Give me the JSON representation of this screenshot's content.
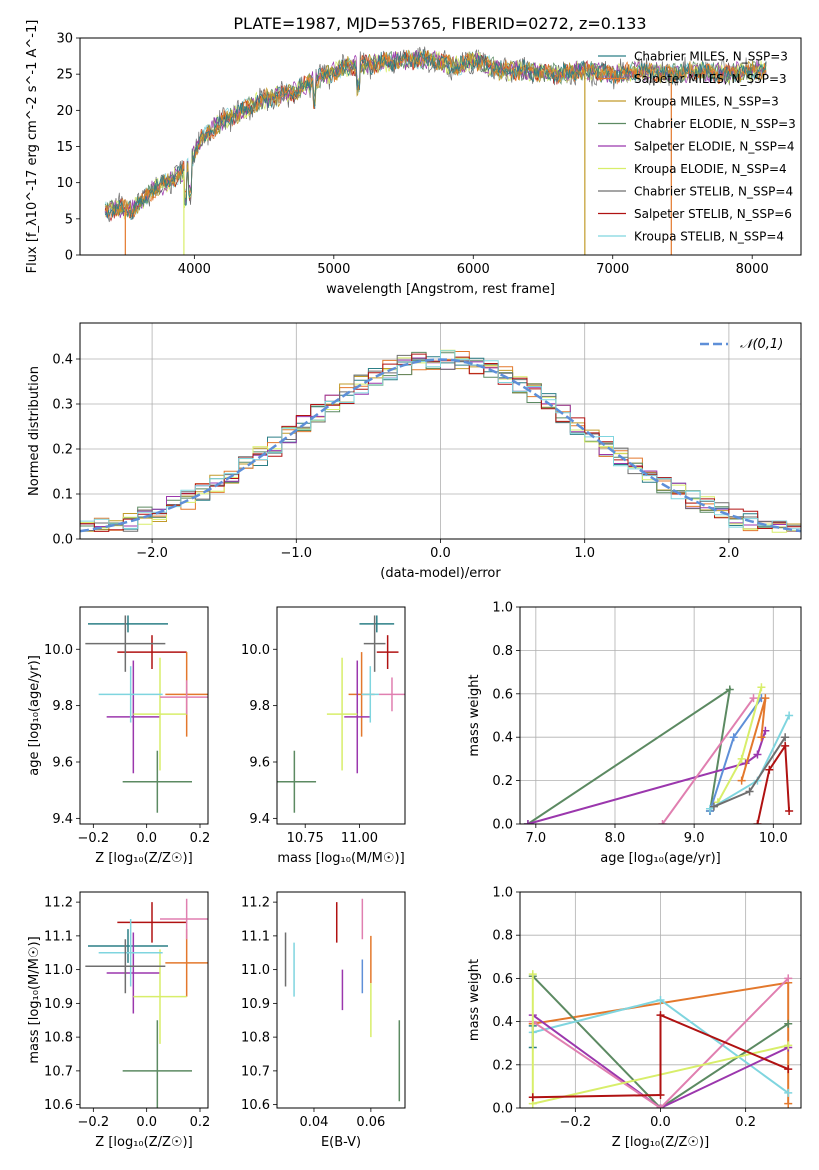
{
  "colors": {
    "chabrier_miles": "#2c7f86",
    "salpeter_miles": "#e3782c",
    "kroupa_miles": "#c29b2a",
    "chabrier_elodie": "#5c8a62",
    "salpeter_elodie": "#9b37ad",
    "kroupa_elodie": "#d8ee6a",
    "chabrier_stelib": "#6f6f6f",
    "salpeter_stelib": "#b01212",
    "kroupa_stelib": "#7fd5df",
    "pink": "#e07fb0",
    "blue": "#5e8fd8",
    "grid": "#b0b0b0"
  },
  "chart_data": [
    {
      "type": "line",
      "title": "PLATE=1987, MJD=53765, FIBERID=0272, z=0.133",
      "xlabel": "wavelength [Angstrom, rest frame]",
      "ylabel": "Flux [f_λ10^-17 erg cm^-2 s^-1 A^-1]",
      "xlim": [
        3180,
        8350
      ],
      "ylim": [
        0,
        30
      ],
      "xticks": [
        4000,
        5000,
        6000,
        7000,
        8000
      ],
      "yticks": [
        0,
        5,
        10,
        15,
        20,
        25,
        30
      ],
      "grid": false,
      "legend_position": "right",
      "series": [
        {
          "name": "Chabrier MILES, N_SSP=3",
          "color_key": "chabrier_miles"
        },
        {
          "name": "Salpeter MILES, N_SSP=3",
          "color_key": "salpeter_miles"
        },
        {
          "name": "Kroupa MILES, N_SSP=3",
          "color_key": "kroupa_miles"
        },
        {
          "name": "Chabrier ELODIE, N_SSP=3",
          "color_key": "chabrier_elodie"
        },
        {
          "name": "Salpeter ELODIE, N_SSP=4",
          "color_key": "salpeter_elodie"
        },
        {
          "name": "Kroupa ELODIE, N_SSP=4",
          "color_key": "kroupa_elodie"
        },
        {
          "name": "Chabrier STELIB, N_SSP=4",
          "color_key": "chabrier_stelib"
        },
        {
          "name": "Salpeter STELIB, N_SSP=6",
          "color_key": "salpeter_stelib"
        },
        {
          "name": "Kroupa STELIB, N_SSP=4",
          "color_key": "kroupa_stelib"
        }
      ],
      "continuum": {
        "x": [
          3360,
          3450,
          3560,
          3700,
          3850,
          3950,
          4050,
          4200,
          4350,
          4500,
          4700,
          4900,
          5100,
          5300,
          5500,
          5700,
          5900,
          6000,
          6200,
          6400,
          6600,
          6800,
          7000,
          7200,
          7400,
          7600,
          7800,
          8000,
          8100
        ],
        "y": [
          6,
          6.5,
          6.2,
          9,
          10.5,
          12,
          16,
          18.5,
          20,
          21.5,
          22.5,
          24.5,
          26,
          26.5,
          27,
          27,
          26,
          27,
          25.5,
          25.5,
          25,
          25.5,
          25,
          25.5,
          25,
          25.5,
          25,
          25.5,
          25.5
        ]
      },
      "spikes": [
        {
          "x": 3505,
          "color_key": "salpeter_miles"
        },
        {
          "x": 3925,
          "color_key": "kroupa_elodie"
        },
        {
          "x": 6800,
          "color_key": "kroupa_miles"
        },
        {
          "x": 7420,
          "color_key": "salpeter_miles"
        }
      ]
    },
    {
      "type": "step",
      "xlabel": "(data-model)/error",
      "ylabel": "Normed distribution",
      "xlim": [
        -2.5,
        2.5
      ],
      "ylim": [
        0,
        0.48
      ],
      "xticks": [
        -2,
        -1,
        0,
        1,
        2
      ],
      "yticks": [
        0.0,
        0.1,
        0.2,
        0.3,
        0.4
      ],
      "grid": true,
      "legend": [
        {
          "label": "𝒩(0,1)",
          "color_key": "blue",
          "style": "dashed"
        }
      ],
      "reference": {
        "name": "N(0,1)",
        "mu": 0,
        "sigma": 1
      }
    },
    {
      "type": "errorbar",
      "xlabel": "Z [log₁₀(Z/Z☉)]",
      "ylabel": "age  [log₁₀(age/yr)]",
      "xlim": [
        -0.25,
        0.23
      ],
      "ylim": [
        9.38,
        10.15
      ],
      "xticks": [
        -0.2,
        0.0,
        0.2
      ],
      "yticks": [
        9.4,
        9.6,
        9.8,
        10.0
      ],
      "points": [
        {
          "x": -0.07,
          "y": 10.09,
          "xerr": 0.15,
          "yerr": 0.03,
          "color_key": "chabrier_miles"
        },
        {
          "x": 0.02,
          "y": 9.99,
          "xerr": 0.13,
          "yerr": 0.06,
          "color_key": "salpeter_stelib"
        },
        {
          "x": 0.15,
          "y": 9.84,
          "xerr": 0.08,
          "yerr": 0.15,
          "color_key": "salpeter_miles"
        },
        {
          "x": 0.04,
          "y": 9.53,
          "xerr": 0.13,
          "yerr": 0.11,
          "color_key": "chabrier_elodie"
        },
        {
          "x": -0.05,
          "y": 9.76,
          "xerr": 0.1,
          "yerr": 0.2,
          "color_key": "salpeter_elodie"
        },
        {
          "x": 0.05,
          "y": 9.77,
          "xerr": 0.1,
          "yerr": 0.2,
          "color_key": "kroupa_elodie"
        },
        {
          "x": -0.06,
          "y": 9.84,
          "xerr": 0.12,
          "yerr": 0.1,
          "color_key": "kroupa_stelib"
        },
        {
          "x": -0.08,
          "y": 10.02,
          "xerr": 0.15,
          "yerr": 0.1,
          "color_key": "chabrier_stelib"
        },
        {
          "x": 0.15,
          "y": 9.83,
          "xerr": 0.1,
          "yerr": 0.06,
          "color_key": "pink"
        }
      ]
    },
    {
      "type": "errorbar",
      "xlabel": "mass [log₁₀(M/M☉)]",
      "xlim": [
        10.62,
        11.21
      ],
      "ylim": [
        9.38,
        10.15
      ],
      "xticks": [
        10.75,
        11.0
      ],
      "yticks": [
        9.4,
        9.6,
        9.8,
        10.0
      ],
      "points": [
        {
          "x": 11.08,
          "y": 10.09,
          "xerr": 0.08,
          "yerr": 0.03,
          "color_key": "chabrier_miles"
        },
        {
          "x": 11.13,
          "y": 9.99,
          "xerr": 0.05,
          "yerr": 0.06,
          "color_key": "salpeter_stelib"
        },
        {
          "x": 11.01,
          "y": 9.84,
          "xerr": 0.06,
          "yerr": 0.15,
          "color_key": "salpeter_miles"
        },
        {
          "x": 10.7,
          "y": 9.53,
          "xerr": 0.1,
          "yerr": 0.11,
          "color_key": "chabrier_elodie"
        },
        {
          "x": 10.99,
          "y": 9.76,
          "xerr": 0.06,
          "yerr": 0.2,
          "color_key": "salpeter_elodie"
        },
        {
          "x": 10.92,
          "y": 9.77,
          "xerr": 0.07,
          "yerr": 0.2,
          "color_key": "kroupa_elodie"
        },
        {
          "x": 11.05,
          "y": 9.84,
          "xerr": 0.04,
          "yerr": 0.1,
          "color_key": "kroupa_stelib"
        },
        {
          "x": 11.07,
          "y": 10.02,
          "xerr": 0.05,
          "yerr": 0.1,
          "color_key": "chabrier_stelib"
        },
        {
          "x": 11.15,
          "y": 9.84,
          "xerr": 0.06,
          "yerr": 0.06,
          "color_key": "pink"
        }
      ]
    },
    {
      "type": "line",
      "xlabel": "age  [log₁₀(age/yr)]",
      "ylabel": "mass weight",
      "xlim": [
        6.8,
        10.35
      ],
      "ylim": [
        0,
        1
      ],
      "xticks": [
        7,
        8,
        9,
        10
      ],
      "yticks": [
        0.0,
        0.2,
        0.4,
        0.6,
        0.8,
        1.0
      ],
      "grid": true,
      "series": [
        {
          "color_key": "chabrier_elodie",
          "x": [
            9.2,
            9.45,
            6.9
          ],
          "y": [
            0.06,
            0.62,
            0.0
          ]
        },
        {
          "color_key": "salpeter_elodie",
          "x": [
            6.9,
            9.65,
            9.8,
            9.9
          ],
          "y": [
            0.0,
            0.28,
            0.32,
            0.43
          ]
        },
        {
          "color_key": "pink",
          "x": [
            8.6,
            9.75
          ],
          "y": [
            0.0,
            0.58
          ]
        },
        {
          "color_key": "blue",
          "x": [
            9.2,
            9.5,
            9.85
          ],
          "y": [
            0.06,
            0.4,
            0.58
          ]
        },
        {
          "color_key": "kroupa_elodie",
          "x": [
            9.3,
            9.6,
            9.85
          ],
          "y": [
            0.1,
            0.3,
            0.63
          ]
        },
        {
          "color_key": "salpeter_miles",
          "x": [
            9.6,
            9.9,
            9.85
          ],
          "y": [
            0.2,
            0.58,
            0.4
          ]
        },
        {
          "color_key": "salpeter_stelib",
          "x": [
            9.8,
            9.95,
            10.15,
            10.2
          ],
          "y": [
            0.0,
            0.25,
            0.36,
            0.06
          ]
        },
        {
          "color_key": "kroupa_stelib",
          "x": [
            9.2,
            9.8,
            10.2
          ],
          "y": [
            0.07,
            0.2,
            0.5
          ]
        },
        {
          "color_key": "chabrier_stelib",
          "x": [
            9.25,
            9.7,
            10.15
          ],
          "y": [
            0.08,
            0.15,
            0.4
          ]
        }
      ]
    },
    {
      "type": "errorbar",
      "xlabel": "Z [log₁₀(Z/Z☉)]",
      "ylabel": "mass [log₁₀(M/M☉)]",
      "xlim": [
        -0.25,
        0.23
      ],
      "ylim": [
        10.59,
        11.23
      ],
      "xticks": [
        -0.2,
        0.0,
        0.2
      ],
      "yticks": [
        10.6,
        10.7,
        10.8,
        10.9,
        11.0,
        11.1,
        11.2
      ],
      "points": [
        {
          "x": -0.07,
          "y": 11.07,
          "xerr": 0.15,
          "yerr": 0.05,
          "color_key": "chabrier_miles"
        },
        {
          "x": 0.02,
          "y": 11.14,
          "xerr": 0.13,
          "yerr": 0.06,
          "color_key": "salpeter_stelib"
        },
        {
          "x": 0.15,
          "y": 11.02,
          "xerr": 0.08,
          "yerr": 0.1,
          "color_key": "salpeter_miles"
        },
        {
          "x": 0.04,
          "y": 10.7,
          "xerr": 0.13,
          "yerr": 0.15,
          "color_key": "chabrier_elodie"
        },
        {
          "x": -0.05,
          "y": 10.99,
          "xerr": 0.1,
          "yerr": 0.12,
          "color_key": "salpeter_elodie"
        },
        {
          "x": 0.05,
          "y": 10.92,
          "xerr": 0.1,
          "yerr": 0.14,
          "color_key": "kroupa_elodie"
        },
        {
          "x": -0.06,
          "y": 11.05,
          "xerr": 0.12,
          "yerr": 0.1,
          "color_key": "kroupa_stelib"
        },
        {
          "x": -0.08,
          "y": 11.01,
          "xerr": 0.15,
          "yerr": 0.08,
          "color_key": "chabrier_stelib"
        },
        {
          "x": 0.15,
          "y": 11.15,
          "xerr": 0.1,
          "yerr": 0.06,
          "color_key": "pink"
        }
      ]
    },
    {
      "type": "errorbar",
      "xlabel": "E(B-V)",
      "xlim": [
        0.027,
        0.072
      ],
      "ylim": [
        10.59,
        11.23
      ],
      "xticks": [
        0.04,
        0.06
      ],
      "yticks": [
        10.6,
        10.7,
        10.8,
        10.9,
        11.0,
        11.1,
        11.2
      ],
      "points": [
        {
          "x": 0.03,
          "y": 11.03,
          "yerr": 0.08,
          "color_key": "chabrier_stelib"
        },
        {
          "x": 0.033,
          "y": 11.0,
          "yerr": 0.08,
          "color_key": "kroupa_stelib"
        },
        {
          "x": 0.048,
          "y": 11.14,
          "yerr": 0.06,
          "color_key": "salpeter_stelib"
        },
        {
          "x": 0.05,
          "y": 10.94,
          "yerr": 0.06,
          "color_key": "salpeter_elodie"
        },
        {
          "x": 0.057,
          "y": 11.15,
          "yerr": 0.06,
          "color_key": "pink"
        },
        {
          "x": 0.057,
          "y": 10.98,
          "yerr": 0.05,
          "color_key": "blue"
        },
        {
          "x": 0.06,
          "y": 11.03,
          "yerr": 0.07,
          "color_key": "salpeter_miles"
        },
        {
          "x": 0.06,
          "y": 10.88,
          "yerr": 0.08,
          "color_key": "kroupa_elodie"
        },
        {
          "x": 0.07,
          "y": 10.73,
          "yerr": 0.12,
          "color_key": "chabrier_elodie"
        }
      ]
    },
    {
      "type": "line",
      "xlabel": "Z [log₁₀(Z/Z☉)]",
      "ylabel": "mass weight",
      "xlim": [
        -0.33,
        0.33
      ],
      "ylim": [
        0,
        1
      ],
      "xticks": [
        -0.2,
        0.0,
        0.2
      ],
      "yticks": [
        0.0,
        0.2,
        0.4,
        0.6,
        0.8,
        1.0
      ],
      "grid": true,
      "series": [
        {
          "color_key": "salpeter_miles",
          "x": [
            -0.3,
            0.3,
            0.3
          ],
          "y": [
            0.39,
            0.58,
            0.02
          ]
        },
        {
          "color_key": "chabrier_elodie",
          "x": [
            -0.3,
            0.0,
            0.3
          ],
          "y": [
            0.61,
            0.0,
            0.39
          ]
        },
        {
          "color_key": "kroupa_stelib",
          "x": [
            -0.3,
            0.0,
            0.3
          ],
          "y": [
            0.35,
            0.5,
            0.07
          ]
        },
        {
          "color_key": "chabrier_miles",
          "x": [
            -0.3,
            -0.3
          ],
          "y": [
            0.28,
            0.38
          ]
        },
        {
          "color_key": "salpeter_elodie",
          "x": [
            -0.3,
            0.0,
            0.3
          ],
          "y": [
            0.43,
            0.0,
            0.28
          ]
        },
        {
          "color_key": "pink",
          "x": [
            -0.3,
            0.0,
            0.3
          ],
          "y": [
            0.4,
            0.0,
            0.6
          ]
        },
        {
          "color_key": "kroupa_elodie",
          "x": [
            -0.3,
            -0.3,
            0.3
          ],
          "y": [
            0.62,
            0.02,
            0.29
          ]
        },
        {
          "color_key": "salpeter_stelib",
          "x": [
            -0.3,
            0.0,
            0.0,
            0.3
          ],
          "y": [
            0.05,
            0.06,
            0.43,
            0.18
          ]
        }
      ]
    }
  ]
}
